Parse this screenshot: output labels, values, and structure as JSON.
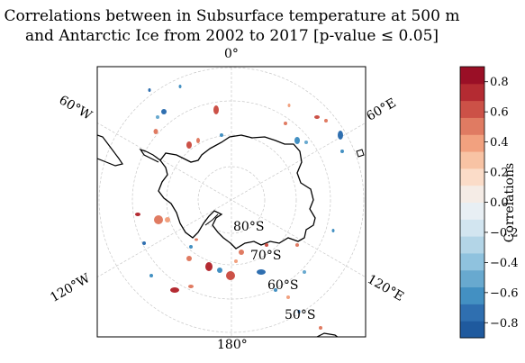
{
  "title": {
    "line1": "Correlations between in Subsurface temperature at 500 m",
    "line2": "and Antarctic Ice from 2002 to 2017 [p-value ≤ 0.05]"
  },
  "map": {
    "projection": "south-polar-stereographic",
    "longitude_labels": [
      "0°",
      "60°W",
      "60°E",
      "120°W",
      "120°E",
      "180°"
    ],
    "latitude_labels": [
      "80°S",
      "70°S",
      "60°S",
      "50°S"
    ],
    "gridlines": true,
    "coastline_color": "#000000"
  },
  "colorbar": {
    "label": "Correlations",
    "ticks": [
      "0.8",
      "0.6",
      "0.4",
      "0.2",
      "0.0",
      "−0.2",
      "−0.4",
      "−0.6",
      "−0.8"
    ],
    "range": [
      -0.9,
      0.9
    ],
    "colors": [
      "#1f5a9e",
      "#2f6fb0",
      "#4390c2",
      "#68a9cf",
      "#8fc2de",
      "#b3d5e7",
      "#d2e5f0",
      "#e8eff4",
      "#f5ece6",
      "#fbdcc8",
      "#f8c3a4",
      "#f2a17f",
      "#e07b62",
      "#cc5147",
      "#b42b32",
      "#9a0f26"
    ]
  }
}
